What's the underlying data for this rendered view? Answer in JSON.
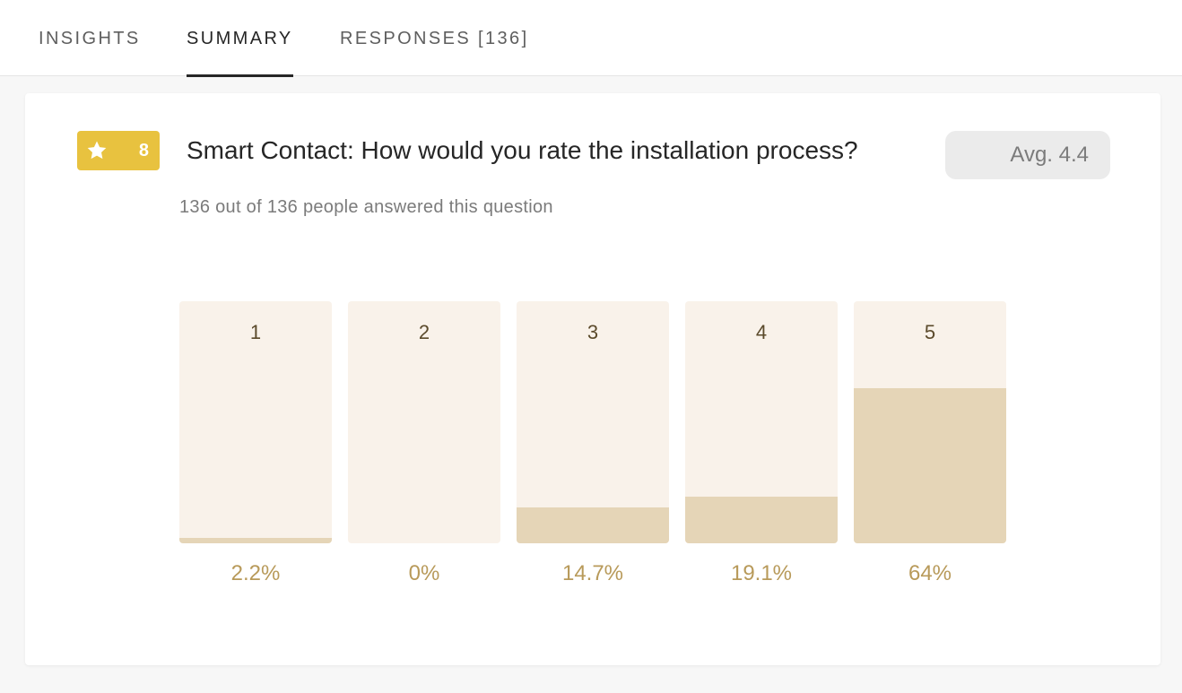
{
  "tabs": [
    {
      "label": "INSIGHTS",
      "active": false
    },
    {
      "label": "SUMMARY",
      "active": true
    },
    {
      "label": "RESPONSES [136]",
      "active": false
    }
  ],
  "question": {
    "icon": "star-icon",
    "number": "8",
    "title": "Smart Contact: How would you rate the installation process?",
    "average": "Avg. 4.4",
    "answered": "136 out of 136 people answered this question",
    "badge_color": "#e8c23f"
  },
  "chart_data": {
    "type": "bar",
    "categories": [
      "1",
      "2",
      "3",
      "4",
      "5"
    ],
    "values": [
      2.2,
      0,
      14.7,
      19.1,
      64
    ],
    "value_labels": [
      "2.2%",
      "0%",
      "14.7%",
      "19.1%",
      "64%"
    ],
    "ylim": [
      0,
      100
    ],
    "colors": {
      "track": "#f9f2ea",
      "fill": "#e5d5b7",
      "label": "#b89a5a"
    }
  }
}
